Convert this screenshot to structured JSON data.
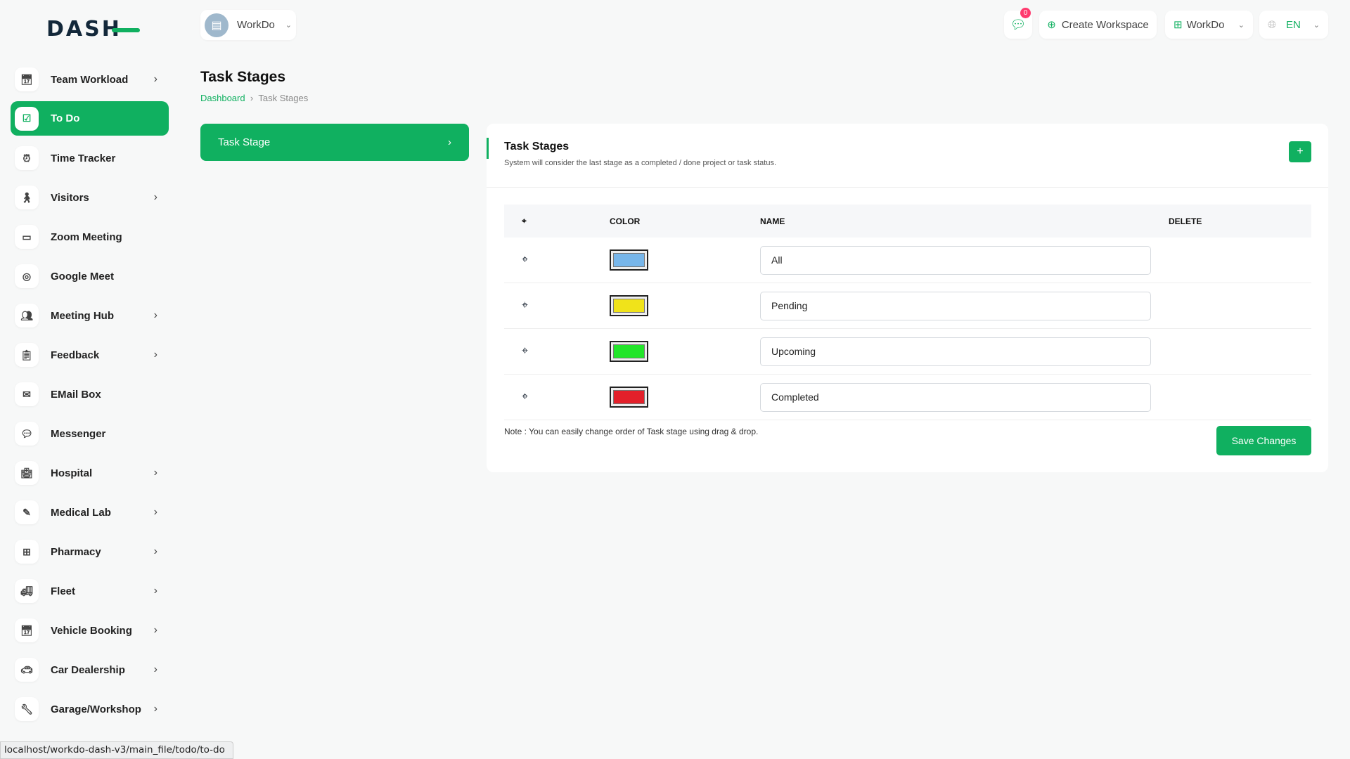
{
  "logo": "DASH",
  "header": {
    "workspace": "WorkDo",
    "chat_count": "0",
    "create_workspace": "Create Workspace",
    "workdo": "WorkDo",
    "lang": "EN"
  },
  "sidebar": {
    "items": [
      {
        "label": "Team Workload",
        "icon": "calendar-icon",
        "sub": true
      },
      {
        "label": "To Do",
        "icon": "checkbox-icon",
        "sub": false,
        "active": true
      },
      {
        "label": "Time Tracker",
        "icon": "alarm-icon",
        "sub": false
      },
      {
        "label": "Visitors",
        "icon": "person-icon",
        "sub": true
      },
      {
        "label": "Zoom Meeting",
        "icon": "video-icon",
        "sub": false
      },
      {
        "label": "Google Meet",
        "icon": "meet-icon",
        "sub": false
      },
      {
        "label": "Meeting Hub",
        "icon": "users-icon",
        "sub": true
      },
      {
        "label": "Feedback",
        "icon": "clipboard-icon",
        "sub": true
      },
      {
        "label": "EMail Box",
        "icon": "mail-icon",
        "sub": false
      },
      {
        "label": "Messenger",
        "icon": "message-icon",
        "sub": false
      },
      {
        "label": "Hospital",
        "icon": "hospital-icon",
        "sub": true
      },
      {
        "label": "Medical Lab",
        "icon": "syringe-icon",
        "sub": true
      },
      {
        "label": "Pharmacy",
        "icon": "pharmacy-icon",
        "sub": true
      },
      {
        "label": "Fleet",
        "icon": "truck-icon",
        "sub": true
      },
      {
        "label": "Vehicle Booking",
        "icon": "calendar-icon",
        "sub": true
      },
      {
        "label": "Car Dealership",
        "icon": "car-icon",
        "sub": true
      },
      {
        "label": "Garage/Workshop",
        "icon": "wrench-icon",
        "sub": true
      }
    ]
  },
  "page": {
    "title": "Task Stages",
    "breadcrumb": [
      "Dashboard",
      "Task Stages"
    ],
    "menu_item": "Task Stage"
  },
  "card": {
    "title": "Task Stages",
    "description": "System will consider the last stage as a completed / done project or task status.",
    "columns": {
      "color": "COLOR",
      "name": "NAME",
      "delete": "DELETE"
    },
    "stages": [
      {
        "name": "All",
        "color": "#77b6ea"
      },
      {
        "name": "Pending",
        "color": "#f0e31a"
      },
      {
        "name": "Upcoming",
        "color": "#22e52a"
      },
      {
        "name": "Completed",
        "color": "#e3202a"
      }
    ],
    "note": "Note : You can easily change order of Task stage using drag & drop.",
    "save": "Save Changes"
  },
  "status_url": "localhost/workdo-dash-v3/main_file/todo/to-do",
  "accent": "#10b060"
}
